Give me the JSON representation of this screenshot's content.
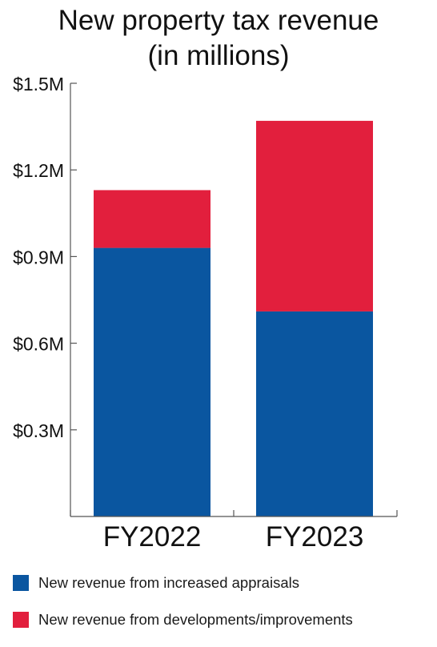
{
  "chart_data": {
    "type": "bar",
    "stacked": true,
    "title": "New property tax revenue (in millions)",
    "title_lines": [
      "New property tax revenue",
      "(in millions)"
    ],
    "categories": [
      "FY2022",
      "FY2023"
    ],
    "series": [
      {
        "name": "New revenue from increased appraisals",
        "values": [
          0.93,
          0.71
        ],
        "color": "#0a56a0"
      },
      {
        "name": "New revenue from developments/improvements",
        "values": [
          0.2,
          0.66
        ],
        "color": "#e21f3d"
      }
    ],
    "ylim": [
      0,
      1.5
    ],
    "yticks": [
      0.3,
      0.6,
      0.9,
      1.2,
      1.5
    ],
    "ytick_labels": [
      "$0.3M",
      "$0.6M",
      "$0.9M",
      "$1.2M",
      "$1.5M"
    ],
    "xlabel": "",
    "ylabel": "",
    "grid": false,
    "legend_position": "bottom"
  }
}
